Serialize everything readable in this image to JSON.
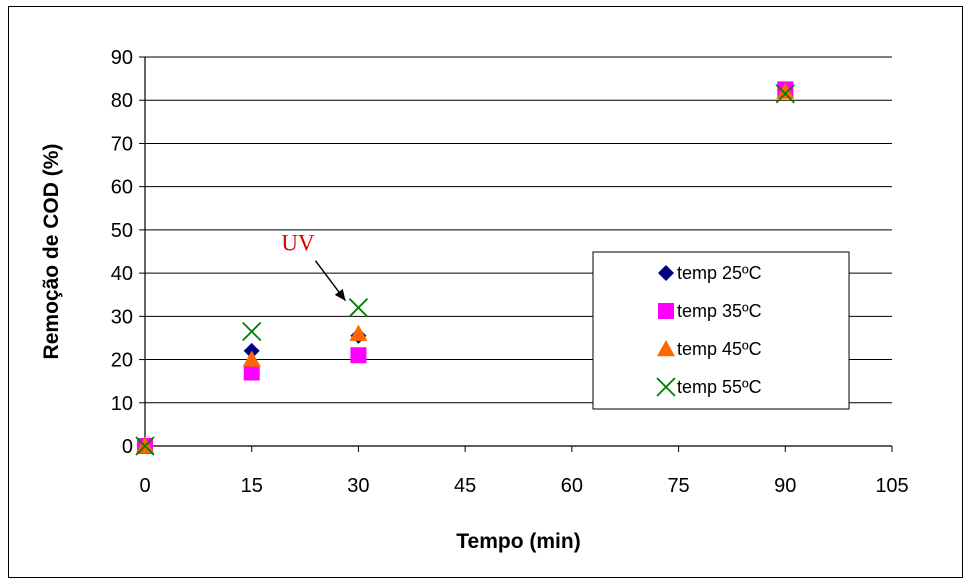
{
  "chart_data": {
    "type": "scatter",
    "title": "",
    "xlabel": "Tempo (min)",
    "ylabel": "Remoção de COD (%)",
    "xlim": [
      0,
      105
    ],
    "ylim": [
      0,
      90
    ],
    "xticks": [
      0,
      15,
      30,
      45,
      60,
      75,
      90,
      105
    ],
    "yticks": [
      0,
      10,
      20,
      30,
      40,
      50,
      60,
      70,
      80,
      90
    ],
    "grid": "horizontal",
    "legend_position": "center-right",
    "series": [
      {
        "name": "temp 25ºC",
        "marker": "diamond",
        "color": "#000080",
        "x": [
          0,
          15,
          30,
          90
        ],
        "y": [
          0,
          22,
          25.5,
          82.5
        ]
      },
      {
        "name": "temp 35ºC",
        "marker": "square",
        "color": "#ff00ff",
        "x": [
          0,
          15,
          30,
          90
        ],
        "y": [
          0,
          17,
          21,
          82.5
        ]
      },
      {
        "name": "temp 45ºC",
        "marker": "triangle",
        "color": "#ff6600",
        "x": [
          0,
          15,
          30,
          90
        ],
        "y": [
          0,
          20,
          26,
          82
        ]
      },
      {
        "name": "temp 55ºC",
        "marker": "x",
        "color": "#008000",
        "x": [
          0,
          15,
          30,
          90
        ],
        "y": [
          0,
          26.5,
          32,
          81.5
        ]
      }
    ],
    "annotations": [
      {
        "text": "UV",
        "color": "#e00000",
        "points_to": {
          "x": 30,
          "y": 32
        }
      }
    ]
  }
}
